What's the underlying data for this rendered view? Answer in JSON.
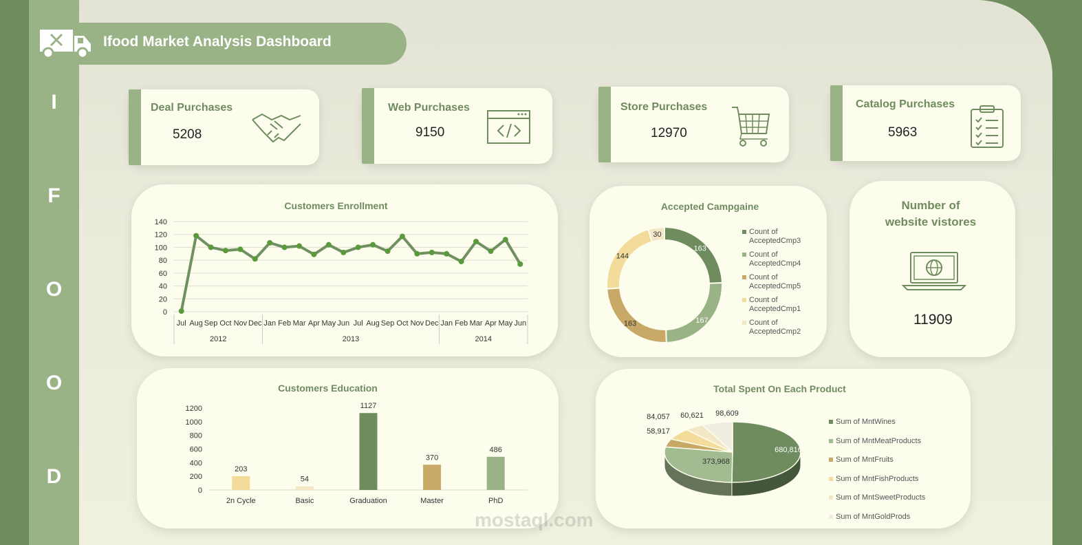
{
  "header": {
    "title": "Ifood Market Analysis Dashboard"
  },
  "sidebar": {
    "letters": [
      "I",
      "F",
      "O",
      "O",
      "D"
    ]
  },
  "kpis": [
    {
      "label": "Deal Purchases",
      "value": "5208",
      "icon": "handshake-icon"
    },
    {
      "label": "Web Purchases",
      "value": "9150",
      "icon": "code-window-icon"
    },
    {
      "label": "Store Purchases",
      "value": "12970",
      "icon": "shopping-cart-icon"
    },
    {
      "label": "Catalog Purchases",
      "value": "5963",
      "icon": "clipboard-checklist-icon"
    }
  ],
  "visitors": {
    "title_line1": "Number of",
    "title_line2": "website vistores",
    "value": "11909",
    "icon": "laptop-globe-icon"
  },
  "colors": {
    "accent": "#9ab386",
    "dark_green": "#6e8c5e",
    "line_green": "#5a9a3a",
    "tan": "#c8a866",
    "light_yellow": "#f3dc9a",
    "cream": "#f3e7c8"
  },
  "watermark": {
    "text": "mostaql.com"
  },
  "chart_data": [
    {
      "id": "enrollment",
      "type": "line",
      "title": "Customers Enrollment",
      "x": [
        "Jul",
        "Aug",
        "Sep",
        "Oct",
        "Nov",
        "Dec",
        "Jan",
        "Feb",
        "Mar",
        "Apr",
        "May",
        "Jun",
        "Jul",
        "Aug",
        "Sep",
        "Oct",
        "Nov",
        "Dec",
        "Jan",
        "Feb",
        "Mar",
        "Apr",
        "May",
        "Jun"
      ],
      "years": [
        {
          "label": "2012",
          "count": 6
        },
        {
          "label": "2013",
          "count": 12
        },
        {
          "label": "2014",
          "count": 6
        }
      ],
      "values": [
        1,
        118,
        100,
        95,
        97,
        82,
        107,
        100,
        102,
        89,
        104,
        92,
        100,
        104,
        94,
        117,
        90,
        92,
        90,
        78,
        109,
        94,
        112,
        74
      ],
      "ylim": [
        0,
        140
      ],
      "yticks": [
        0,
        20,
        40,
        60,
        80,
        100,
        120,
        140
      ],
      "grid": true
    },
    {
      "id": "campaign",
      "type": "pie",
      "title": "Accepted Campgaine",
      "labels": [
        "Count of AcceptedCmp3",
        "Count of AcceptedCmp4",
        "Count of AcceptedCmp5",
        "Count of AcceptedCmp1",
        "Count of AcceptedCmp2"
      ],
      "legend_lines": [
        [
          "Count of",
          "AcceptedCmp3"
        ],
        [
          "Count of",
          "AcceptedCmp4"
        ],
        [
          "Count of",
          "AcceptedCmp5"
        ],
        [
          "Count of",
          "AcceptedCmp1"
        ],
        [
          "Count of",
          "AcceptedCmp2"
        ]
      ],
      "values": [
        163,
        167,
        163,
        144,
        30
      ],
      "colors": [
        "#6e8c5e",
        "#9ab386",
        "#c8a866",
        "#f3dc9a",
        "#f3e7c8"
      ],
      "legend": "right"
    },
    {
      "id": "education",
      "type": "bar",
      "title": "Customers Education",
      "categories": [
        "2n Cycle",
        "Basic",
        "Graduation",
        "Master",
        "PhD"
      ],
      "values": [
        203,
        54,
        1127,
        370,
        486
      ],
      "colors": [
        "#f3dc9a",
        "#f3e7c8",
        "#6e8c5e",
        "#c8a866",
        "#9ab386"
      ],
      "ylim": [
        0,
        1200
      ],
      "yticks": [
        0,
        200,
        400,
        600,
        800,
        1000,
        1200
      ]
    },
    {
      "id": "products",
      "type": "pie",
      "title": "Total Spent On Each Product",
      "labels": [
        "Sum of MntWines",
        "Sum of MntMeatProducts",
        "Sum of MntFruits",
        "Sum of MntFishProducts",
        "Sum of MntSweetProducts",
        "Sum of MntGoldProds"
      ],
      "values": [
        680816,
        373968,
        58917,
        84057,
        60621,
        98609
      ],
      "value_labels": [
        "680,816",
        "373,968",
        "58,917",
        "84,057",
        "60,621",
        "98,609"
      ],
      "colors": [
        "#6e8c5e",
        "#a3bb90",
        "#c8a866",
        "#f3dc9a",
        "#f3e7c8",
        "#efeee0"
      ],
      "legend": "right"
    }
  ]
}
